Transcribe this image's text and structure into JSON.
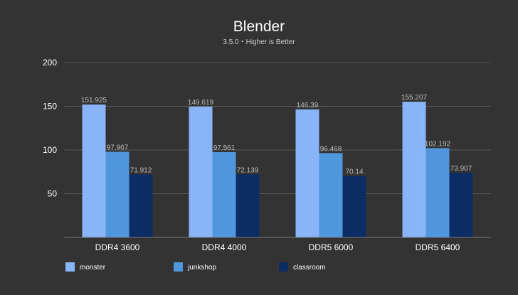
{
  "chart_data": {
    "type": "bar",
    "title": "Blender",
    "subtitle": "3.5.0・Higher is Better",
    "categories": [
      "DDR4 3600",
      "DDR4 4000",
      "DDR5 6000",
      "DDR5 6400"
    ],
    "series": [
      {
        "name": "monster",
        "color": "#8ab4f8",
        "values": [
          151.925,
          149.619,
          146.39,
          155.207
        ],
        "labels": [
          "151.925",
          "149.619",
          "146.39",
          "155.207"
        ]
      },
      {
        "name": "junkshop",
        "color": "#4f96dc",
        "values": [
          97.967,
          97.561,
          96.468,
          102.192
        ],
        "labels": [
          "97.967",
          "97.561",
          "96.468",
          "102.192"
        ]
      },
      {
        "name": "classroom",
        "color": "#0b2d63",
        "values": [
          71.912,
          72.139,
          70.14,
          73.907
        ],
        "labels": [
          "71.912",
          "72.139",
          "70.14",
          "73.907"
        ]
      }
    ],
    "yticks": [
      50,
      100,
      150,
      200
    ],
    "ylim": [
      0,
      200
    ],
    "xlabel": "",
    "ylabel": "",
    "grid": true,
    "legend_position": "bottom",
    "colors": {
      "background": "#333333",
      "text": "#ffffff",
      "grid": "#5a5a5a",
      "label": "#bbbbbb"
    }
  }
}
